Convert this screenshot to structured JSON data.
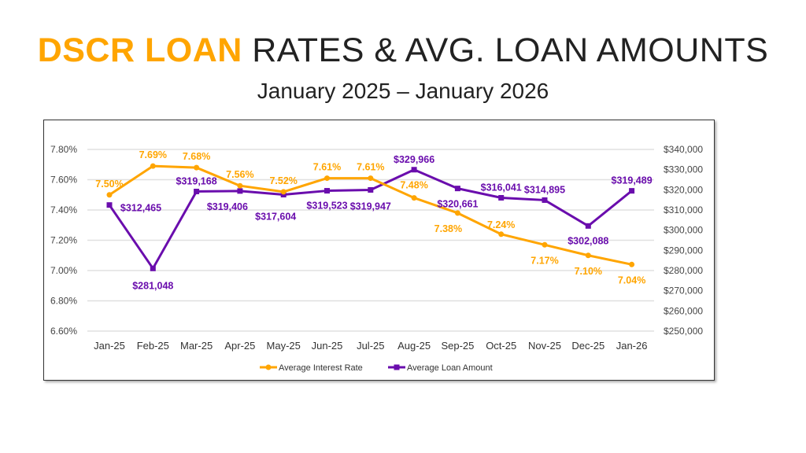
{
  "title": {
    "highlight": "DSCR LOAN",
    "rest": "RATES & AVG. LOAN AMOUNTS"
  },
  "subtitle": "January 2025 – January 2026",
  "colors": {
    "rate": "#FFA500",
    "loan": "#6A0DAD",
    "title_highlight": "#FFA500",
    "grid": "#E0E0E0"
  },
  "chart_data": {
    "type": "line",
    "categories": [
      "Jan-25",
      "Feb-25",
      "Mar-25",
      "Apr-25",
      "May-25",
      "Jun-25",
      "Jul-25",
      "Aug-25",
      "Sep-25",
      "Oct-25",
      "Nov-25",
      "Dec-25",
      "Jan-26"
    ],
    "series": [
      {
        "name": "Average Interest Rate",
        "axis": "left",
        "marker": "circle",
        "values": [
          7.5,
          7.69,
          7.68,
          7.56,
          7.52,
          7.61,
          7.61,
          7.48,
          7.38,
          7.24,
          7.17,
          7.1,
          7.04
        ],
        "labels": [
          "7.50%",
          "7.69%",
          "7.68%",
          "7.56%",
          "7.52%",
          "7.61%",
          "7.61%",
          "7.48%",
          "7.38%",
          "7.24%",
          "7.17%",
          "7.10%",
          "7.04%"
        ]
      },
      {
        "name": "Average Loan Amount",
        "axis": "right",
        "marker": "square",
        "values": [
          312465,
          281048,
          319168,
          319406,
          317604,
          319523,
          319947,
          329966,
          320661,
          316041,
          314895,
          302088,
          319489
        ],
        "labels": [
          "$312,465",
          "$281,048",
          "$319,168",
          "$319,406",
          "$317,604",
          "$319,523",
          "$319,947",
          "$329,966",
          "$320,661",
          "$316,041",
          "$314,895",
          "$302,088",
          "$319,489"
        ]
      }
    ],
    "left_axis": {
      "min": 6.6,
      "max": 7.8,
      "ticks": [
        "6.60%",
        "6.80%",
        "7.00%",
        "7.20%",
        "7.40%",
        "7.60%",
        "7.80%"
      ]
    },
    "right_axis": {
      "min": 250000,
      "max": 340000,
      "ticks": [
        "$250,000",
        "$260,000",
        "$270,000",
        "$280,000",
        "$290,000",
        "$300,000",
        "$310,000",
        "$320,000",
        "$330,000",
        "$340,000"
      ]
    },
    "grid": true,
    "legend": "bottom"
  }
}
